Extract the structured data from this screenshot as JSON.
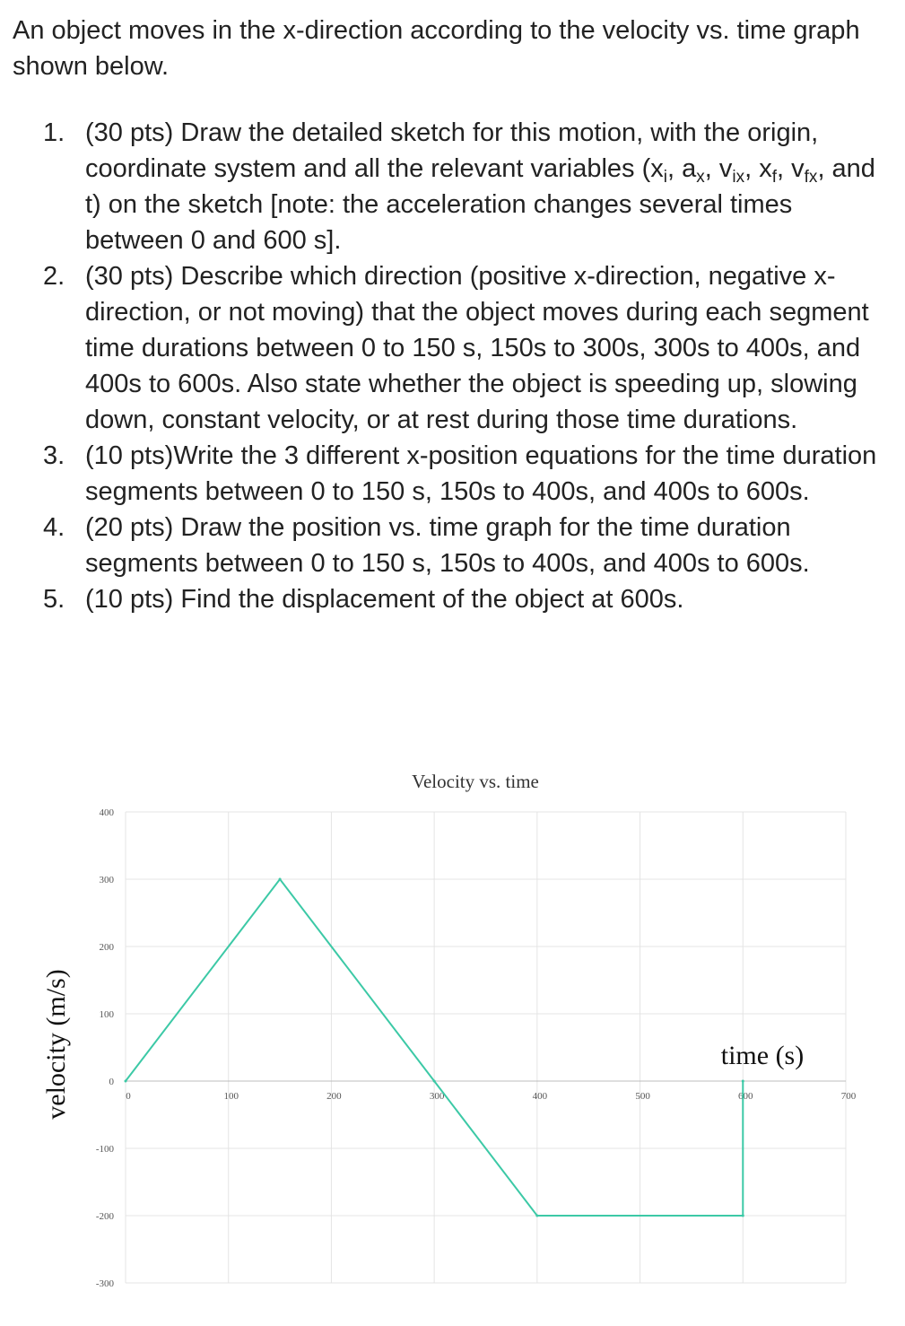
{
  "intro": "An object moves in the x-direction according to the velocity vs. time graph shown below.",
  "questions": [
    {
      "num": "1.",
      "parts": [
        {
          "t": "(30 pts) Draw the detailed sketch for this motion, with the origin, coordinate system and all the relevant variables (x"
        },
        {
          "sub": "i"
        },
        {
          "t": ", a"
        },
        {
          "sub": "x"
        },
        {
          "t": ", v"
        },
        {
          "sub": "ix"
        },
        {
          "t": ", x"
        },
        {
          "sub": "f"
        },
        {
          "t": ", v"
        },
        {
          "sub": "fx"
        },
        {
          "t": ", and t) on the sketch [note: the acceleration changes several times between 0 and 600 s]."
        }
      ]
    },
    {
      "num": "2.",
      "parts": [
        {
          "t": "(30 pts) Describe which direction (positive x-direction, negative x-direction, or not moving) that the object moves during each segment time durations between 0 to 150 s, 150s to 300s, 300s to 400s, and 400s to 600s. Also state whether the object is speeding up, slowing down, constant velocity, or at rest during those time durations."
        }
      ]
    },
    {
      "num": "3.",
      "parts": [
        {
          "t": "(10 pts)Write the 3 different x-position equations for the time duration segments between 0 to 150 s, 150s to 400s, and 400s to 600s."
        }
      ]
    },
    {
      "num": "4.",
      "parts": [
        {
          "t": "(20 pts) Draw the position vs. time graph for the time duration segments between 0 to 150 s, 150s to 400s, and 400s to 600s."
        }
      ]
    },
    {
      "num": "5.",
      "parts": [
        {
          "t": "(10 pts) Find the displacement of the object at 600s."
        }
      ]
    }
  ],
  "chart_data": {
    "type": "line",
    "title": "Velocity vs. time",
    "xlabel": "time (s)",
    "ylabel": "velocity (m/s)",
    "xlim": [
      0,
      700
    ],
    "ylim": [
      -300,
      400
    ],
    "xticks": [
      0,
      100,
      200,
      300,
      400,
      500,
      600,
      700
    ],
    "yticks": [
      -300,
      -200,
      -100,
      0,
      100,
      200,
      300,
      400
    ],
    "grid": true,
    "line_color": "#3cc9a6",
    "series": [
      {
        "x": [
          0,
          150,
          300,
          400,
          600,
          600
        ],
        "y": [
          0,
          300,
          0,
          -200,
          -200,
          0
        ]
      }
    ]
  }
}
